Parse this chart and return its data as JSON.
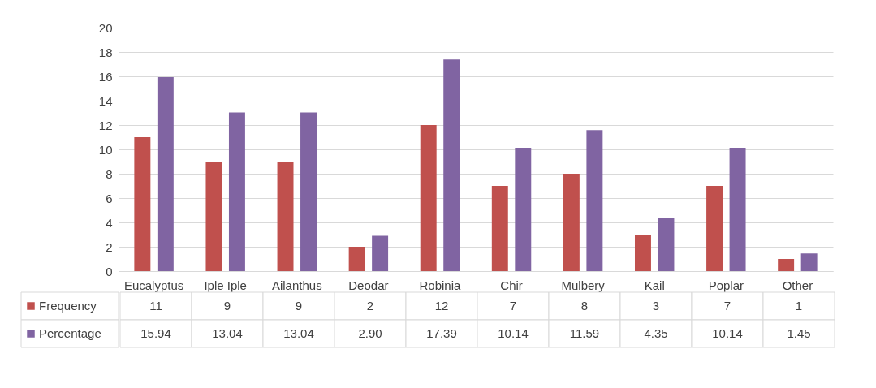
{
  "chart_data": {
    "type": "bar",
    "categories": [
      "Eucalyptus",
      "Iple Iple",
      "Ailanthus",
      "Deodar",
      "Robinia",
      "Chir",
      "Mulbery",
      "Kail",
      "Poplar",
      "Other"
    ],
    "series": [
      {
        "name": "Frequency",
        "color": "#c0504d",
        "values": [
          11,
          9,
          9,
          2,
          12,
          7,
          8,
          3,
          7,
          1
        ],
        "value_labels": [
          "11",
          "9",
          "9",
          "2",
          "12",
          "7",
          "8",
          "3",
          "7",
          "1"
        ]
      },
      {
        "name": "Percentage",
        "color": "#8064a2",
        "values": [
          15.94,
          13.04,
          13.04,
          2.9,
          17.39,
          10.14,
          11.59,
          4.35,
          10.14,
          1.45
        ],
        "value_labels": [
          "15.94",
          "13.04",
          "13.04",
          "2.90",
          "17.39",
          "10.14",
          "11.59",
          "4.35",
          "10.14",
          "1.45"
        ]
      }
    ],
    "ylim": [
      0,
      20
    ],
    "yticks": [
      0,
      2,
      4,
      6,
      8,
      10,
      12,
      14,
      16,
      18,
      20
    ],
    "grid": "y",
    "legend": "bottom"
  }
}
